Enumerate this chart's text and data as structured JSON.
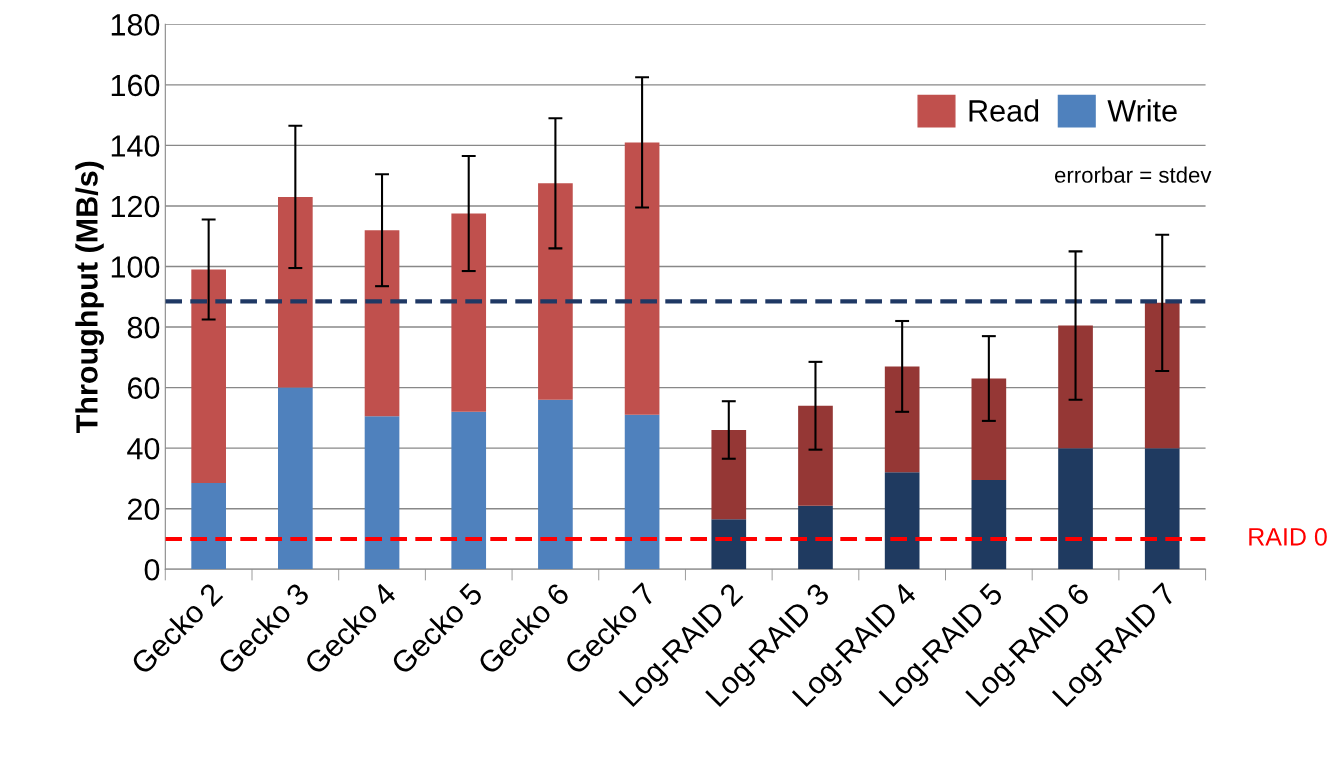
{
  "chart_data": {
    "type": "bar",
    "stacked": true,
    "ylabel": "Throughput (MB/s)",
    "categories": [
      "Gecko 2",
      "Gecko 3",
      "Gecko 4",
      "Gecko 5",
      "Gecko 6",
      "Gecko 7",
      "Log-RAID 2",
      "Log-RAID 3",
      "Log-RAID 4",
      "Log-RAID 5",
      "Log-RAID 6",
      "Log-RAID 7"
    ],
    "series": [
      {
        "name": "Write",
        "color": "#4f81bd",
        "colors": [
          "#4f81bd",
          "#4f81bd",
          "#4f81bd",
          "#4f81bd",
          "#4f81bd",
          "#4f81bd",
          "#1f3a60",
          "#1f3a60",
          "#1f3a60",
          "#1f3a60",
          "#1f3a60",
          "#1f3a60"
        ],
        "values": [
          28.5,
          60,
          50.5,
          52,
          56,
          51,
          16.5,
          21,
          32,
          29.5,
          40,
          40
        ]
      },
      {
        "name": "Read",
        "color": "#c0504d",
        "colors": [
          "#c0504d",
          "#c0504d",
          "#c0504d",
          "#c0504d",
          "#c0504d",
          "#c0504d",
          "#953735",
          "#953735",
          "#953735",
          "#953735",
          "#953735",
          "#953735"
        ],
        "values": [
          70.5,
          63,
          61.5,
          65.5,
          71.5,
          90,
          29.5,
          33,
          35,
          33.5,
          40.5,
          48
        ],
        "errors": [
          16.5,
          23.5,
          18.5,
          19,
          21.5,
          21.5,
          9.5,
          14.5,
          15,
          14,
          24.5,
          22.5
        ]
      }
    ],
    "ylim": [
      0,
      180
    ],
    "yticks": [
      0,
      20,
      40,
      60,
      80,
      100,
      120,
      140,
      160,
      180
    ],
    "grid": "y",
    "legend": "top right",
    "ref_lines": [
      {
        "axis": "y",
        "value": 88.5,
        "label": null,
        "color": "#1f3864",
        "line_style": "dashed"
      },
      {
        "axis": "y",
        "value": 10,
        "label": "RAID 0",
        "color": "#ff0000",
        "line_style": "dashed"
      }
    ],
    "annotations": [
      "errorbar = stdev"
    ]
  }
}
